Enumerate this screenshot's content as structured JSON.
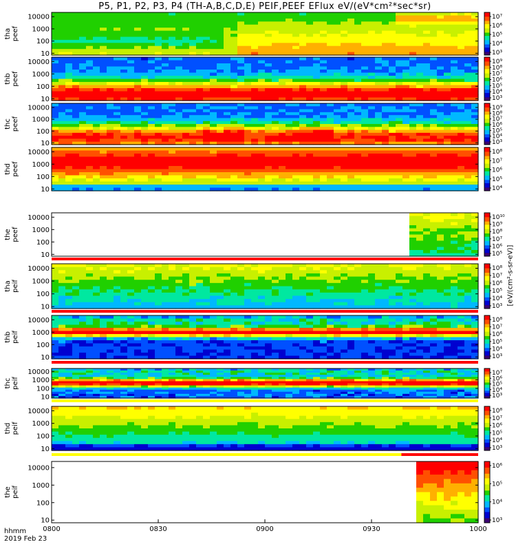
{
  "chart_data": {
    "type": "heatmap",
    "title": "P5, P1, P2, P3, P4 (TH-A,B,C,D,E) PEIF,PEEF EFlux eV/(eV*cm²*sec*sr)",
    "x_axis": {
      "row1_label": "hhmm",
      "row2_label": "2019 Feb 23",
      "ticks": [
        "0800",
        "0830",
        "0900",
        "0930",
        "1000"
      ],
      "range": [
        "08:00",
        "10:00"
      ]
    },
    "y_axis": {
      "scale": "log",
      "ticks": [
        "10",
        "100",
        "1000",
        "10000"
      ],
      "unit": "eV"
    },
    "colorbar_unit": "[eV/(cm²-s-sr-eV)]",
    "colormap": [
      "#3b0072",
      "#0000d0",
      "#0050ff",
      "#00b8ff",
      "#00e8a0",
      "#20d000",
      "#c8f000",
      "#ffff00",
      "#ffb000",
      "#ff5000",
      "#ff0000"
    ],
    "panels": [
      {
        "probe": "tha",
        "species": "peef",
        "ylabel": "tha peef",
        "cb_ticks": [
          "10⁷",
          "10⁶",
          "10⁵",
          "10⁴",
          "10³"
        ]
      },
      {
        "probe": "thb",
        "species": "peef",
        "ylabel": "thb peef",
        "cb_ticks": [
          "10⁹",
          "10⁸",
          "10⁷",
          "10⁶",
          "10⁵",
          "10⁴",
          "10³"
        ]
      },
      {
        "probe": "thc",
        "species": "peef",
        "ylabel": "thc peef",
        "cb_ticks": [
          "10⁹",
          "10⁸",
          "10⁷",
          "10⁶",
          "10⁵",
          "10⁴",
          "10³"
        ]
      },
      {
        "probe": "thd",
        "species": "peef",
        "ylabel": "thd peef",
        "cb_ticks": [
          "10⁸",
          "10⁷",
          "10⁶",
          "10⁵",
          "10⁴"
        ]
      },
      {
        "probe": "the",
        "species": "peef",
        "ylabel": "the peef",
        "cb_ticks": [
          "10¹⁰",
          "10⁹",
          "10⁸",
          "10⁷",
          "10⁶",
          "10⁵"
        ]
      },
      {
        "probe": "tha",
        "species": "peif",
        "ylabel": "tha peif",
        "cb_ticks": [
          "10⁸",
          "10⁷",
          "10⁶",
          "10⁵",
          "10⁴",
          "10³"
        ]
      },
      {
        "probe": "thb",
        "species": "peif",
        "ylabel": "thb peif",
        "cb_ticks": [
          "10⁸",
          "10⁷",
          "10⁶",
          "10⁵",
          "10⁴",
          "10³"
        ]
      },
      {
        "probe": "thc",
        "species": "peif",
        "ylabel": "thc peif",
        "cb_ticks": [
          "10⁷",
          "10⁶",
          "10⁵",
          "10⁴",
          "10³"
        ]
      },
      {
        "probe": "thd",
        "species": "peif",
        "ylabel": "thd peif",
        "cb_ticks": [
          "10⁸",
          "10⁷",
          "10⁶",
          "10⁵",
          "10⁴",
          "10³"
        ]
      },
      {
        "probe": "the",
        "species": "peif",
        "ylabel": "the peif",
        "cb_ticks": [
          "10⁶",
          "10⁵",
          "10⁴",
          "10³"
        ]
      }
    ]
  }
}
